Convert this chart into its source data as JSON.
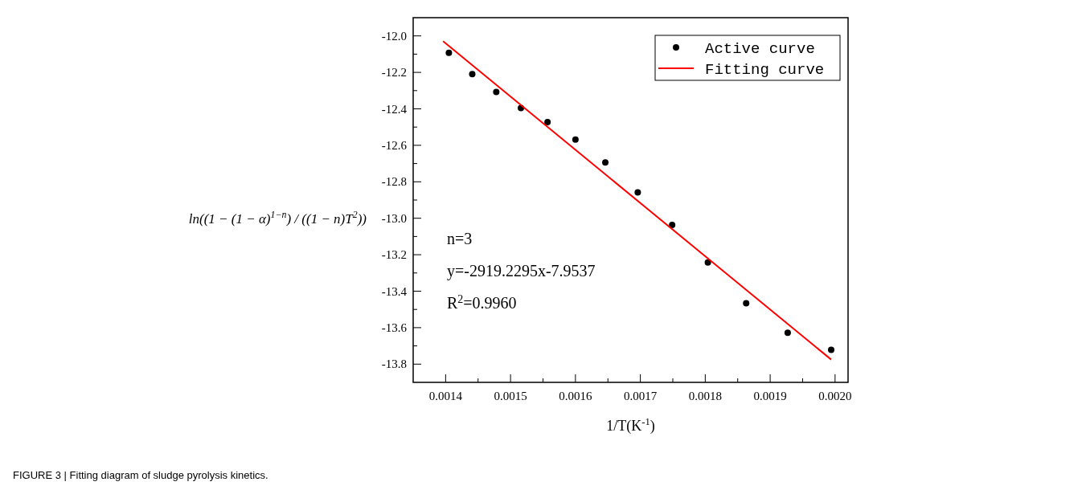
{
  "chart_data": {
    "type": "scatter",
    "xlabel": "1/T(K$^{-1}$)",
    "ylabel": "ln((1 − (1 − α)$^{1−n}$) / ((1 − n)T$^{2}$))",
    "xlim": [
      0.00135,
      0.00202
    ],
    "xticks": [
      0.0014,
      {
        "value": 0.00145,
        "label": null
      },
      0.0015,
      {
        "value": 0.00155,
        "label": null
      },
      0.0016,
      {
        "value": 0.00165,
        "label": null
      },
      0.0017,
      {
        "value": 0.00175,
        "label": null
      },
      0.0018,
      {
        "value": 0.00185,
        "label": null
      },
      0.0019,
      {
        "value": 0.00195,
        "label": null
      },
      {
        "value": 0.002,
        "label": "0.0020"
      }
    ],
    "ylim": [
      -13.9,
      -11.9
    ],
    "yticks": [
      {
        "value": -12,
        "label": "-12.0"
      },
      {
        "value": -12.1,
        "label": null
      },
      -12.2,
      {
        "value": -12.3,
        "label": null
      },
      -12.4,
      {
        "value": -12.5,
        "label": null
      },
      -12.6,
      {
        "value": -12.7,
        "label": null
      },
      -12.8,
      {
        "value": -12.9,
        "label": null
      },
      {
        "value": -13,
        "label": "-13.0"
      },
      {
        "value": -13.1,
        "label": null
      },
      -13.2,
      {
        "value": -13.3,
        "label": null
      },
      -13.4,
      {
        "value": -13.5,
        "label": null
      },
      -13.6,
      {
        "value": -13.7,
        "label": null
      },
      -13.8
    ],
    "series": [
      {
        "name": "Active curve",
        "color": "#000000",
        "marker": "circle",
        "x": [
          0.001405,
          0.001441,
          0.001478,
          0.001516,
          0.001557,
          0.0016,
          0.001646,
          0.001696,
          0.001749,
          0.001804,
          0.001863,
          0.001927,
          0.001994
        ],
        "values": [
          -12.093,
          -12.209,
          -12.308,
          -12.396,
          -12.473,
          -12.569,
          -12.694,
          -12.858,
          -13.037,
          -13.243,
          -13.466,
          -13.628,
          -13.722
        ]
      },
      {
        "name": "Fitting curve",
        "type": "line",
        "color": "#ff0000",
        "line_style": "solid",
        "x": [
          0.001396,
          0.001994
        ],
        "values": [
          -12.029,
          -13.775
        ]
      }
    ],
    "legend": "top right",
    "grid": false,
    "annotations": [
      "n=3",
      "y=-2919.2295x-7.9537",
      "R$^{2}$=0.9960",
      "FIGURE 3 | Fitting diagram of sludge pyrolysis kinetics."
    ]
  }
}
